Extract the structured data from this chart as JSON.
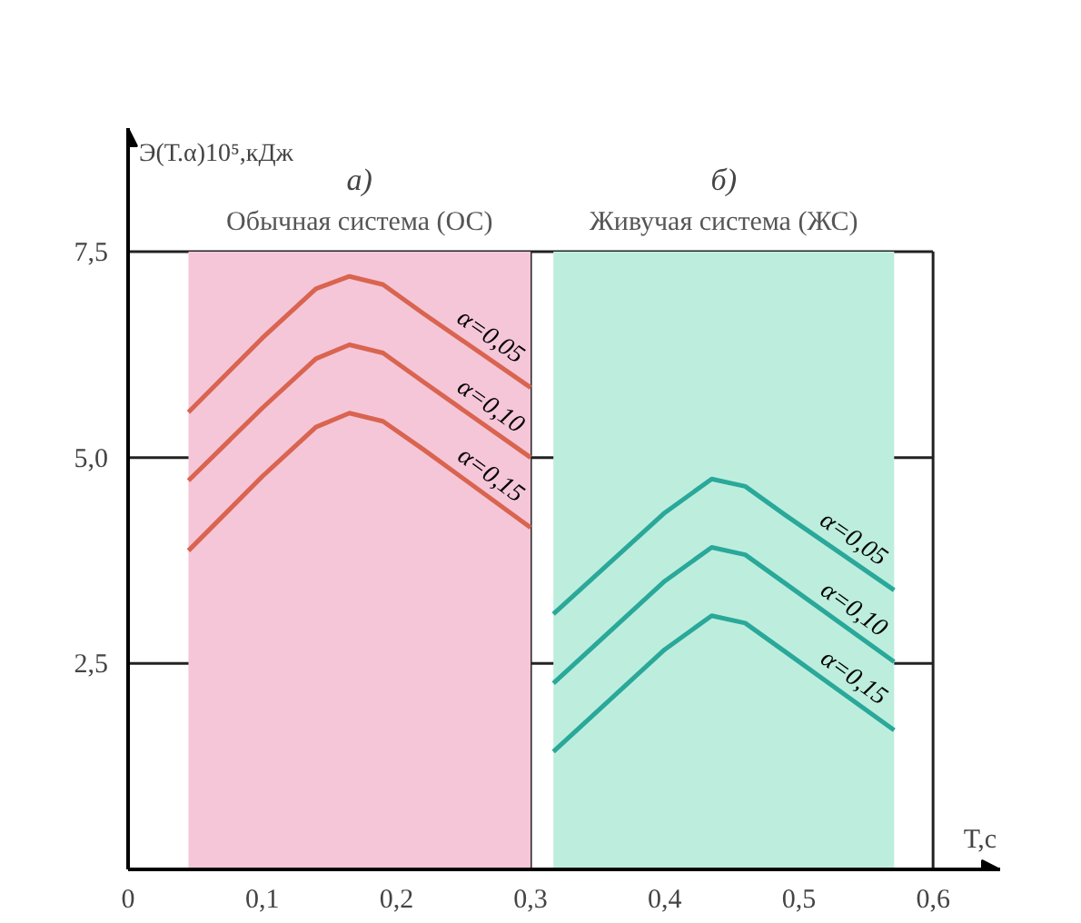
{
  "chart_data": {
    "type": "line",
    "ylabel": "Э(Т.α)10⁵,кДж",
    "xlabel": "Т,с",
    "xlim": [
      0,
      0.65
    ],
    "ylim": [
      0,
      9
    ],
    "xticks": [
      {
        "value": 0,
        "label": "0"
      },
      {
        "value": 0.1,
        "label": "0,1"
      },
      {
        "value": 0.2,
        "label": "0,2"
      },
      {
        "value": 0.3,
        "label": "0,3"
      },
      {
        "value": 0.4,
        "label": "0,4"
      },
      {
        "value": 0.5,
        "label": "0,5"
      },
      {
        "value": 0.6,
        "label": "0,6"
      }
    ],
    "yticks": [
      {
        "value": 2.5,
        "label": "2,5"
      },
      {
        "value": 5.0,
        "label": "5,0"
      },
      {
        "value": 7.5,
        "label": "7,5"
      }
    ],
    "grid": true,
    "marker": "none",
    "line_style": "solid",
    "bands": [
      {
        "axis": "x",
        "from": 0.045,
        "to": 0.3,
        "label": "Обычная система (ОС)",
        "color": "#f5c6d8"
      },
      {
        "axis": "x",
        "from": 0.317,
        "to": 0.571,
        "label": "Живучая система (ЖС)",
        "color": "#bdeedd"
      }
    ],
    "annotations": [
      "а)",
      "б)"
    ],
    "series": [
      {
        "name": "α=0,05",
        "color": "#d9644f",
        "x": [
          0.045,
          0.1,
          0.14,
          0.165,
          0.19,
          0.22,
          0.3
        ],
        "values": [
          5.55,
          6.45,
          7.05,
          7.2,
          7.1,
          6.75,
          5.85
        ]
      },
      {
        "name": "α=0,10",
        "color": "#d9644f",
        "x": [
          0.045,
          0.1,
          0.14,
          0.165,
          0.19,
          0.22,
          0.3
        ],
        "values": [
          4.72,
          5.6,
          6.2,
          6.37,
          6.27,
          5.92,
          5.0
        ]
      },
      {
        "name": "α=0,15",
        "color": "#d9644f",
        "x": [
          0.045,
          0.1,
          0.14,
          0.165,
          0.19,
          0.22,
          0.3
        ],
        "values": [
          3.87,
          4.77,
          5.37,
          5.54,
          5.44,
          5.1,
          4.15
        ]
      },
      {
        "name": "α=0,05",
        "color": "#2aa89a",
        "x": [
          0.317,
          0.4,
          0.435,
          0.46,
          0.49,
          0.571
        ],
        "values": [
          3.1,
          4.33,
          4.74,
          4.65,
          4.3,
          3.39
        ]
      },
      {
        "name": "α=0,10",
        "color": "#2aa89a",
        "x": [
          0.317,
          0.4,
          0.435,
          0.46,
          0.49,
          0.571
        ],
        "values": [
          2.26,
          3.5,
          3.91,
          3.82,
          3.47,
          2.52
        ]
      },
      {
        "name": "α=0,15",
        "color": "#2aa89a",
        "x": [
          0.317,
          0.4,
          0.435,
          0.46,
          0.49,
          0.571
        ],
        "values": [
          1.43,
          2.67,
          3.08,
          2.99,
          2.64,
          1.69
        ]
      }
    ]
  }
}
